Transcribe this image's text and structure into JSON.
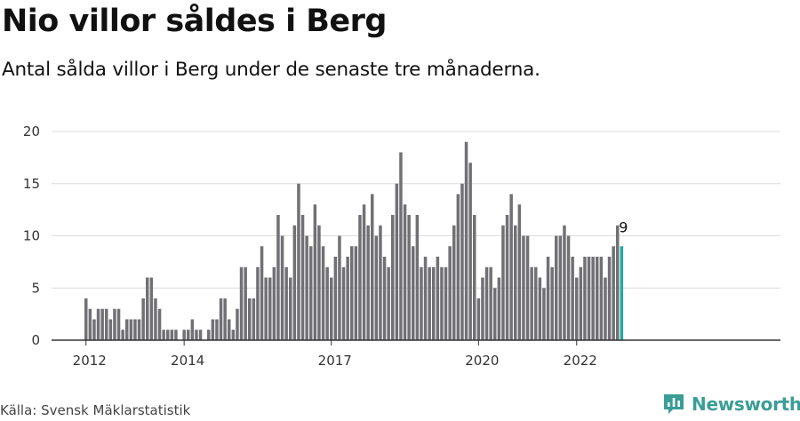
{
  "title": "Nio villor såldes i Berg",
  "subtitle": "Antal sålda villor i Berg under de senaste tre månaderna.",
  "source": "Källa: Svensk Mäklarstatistik",
  "brand": "Newsworthy",
  "colors": {
    "bar": "#717074",
    "highlight": "#23a99f",
    "grid": "#dcdcdc",
    "axis": "#333333",
    "brand": "#3a9e96"
  },
  "chart_data": {
    "type": "bar",
    "title": "Nio villor såldes i Berg",
    "subtitle": "Antal sålda villor i Berg under de senaste tre månaderna.",
    "xlabel": "",
    "ylabel": "",
    "ylim": [
      0,
      20
    ],
    "yticks": [
      0,
      5,
      10,
      15,
      20
    ],
    "grid": true,
    "frequency": "monthly (rolling three-month sum)",
    "xrange": [
      "2012-01",
      "2022-12"
    ],
    "xticks": [
      {
        "label": "2012",
        "month": "2012-01"
      },
      {
        "label": "2014",
        "month": "2014-01"
      },
      {
        "label": "2017",
        "month": "2017-01"
      },
      {
        "label": "2020",
        "month": "2020-01"
      },
      {
        "label": "2022",
        "month": "2022-01"
      }
    ],
    "values": [
      4,
      3,
      2,
      3,
      3,
      3,
      2,
      3,
      3,
      1,
      2,
      2,
      2,
      2,
      4,
      6,
      6,
      4,
      3,
      1,
      1,
      1,
      1,
      0,
      1,
      1,
      2,
      1,
      1,
      0,
      1,
      2,
      2,
      4,
      4,
      2,
      1,
      3,
      7,
      7,
      4,
      4,
      7,
      9,
      6,
      6,
      7,
      12,
      10,
      7,
      6,
      11,
      15,
      12,
      10,
      9,
      13,
      11,
      9,
      7,
      6,
      8,
      10,
      7,
      8,
      9,
      9,
      12,
      13,
      11,
      14,
      10,
      11,
      8,
      7,
      12,
      15,
      18,
      13,
      12,
      9,
      12,
      7,
      8,
      7,
      7,
      8,
      7,
      7,
      9,
      11,
      14,
      15,
      19,
      17,
      12,
      4,
      6,
      7,
      7,
      5,
      6,
      11,
      12,
      14,
      11,
      13,
      10,
      10,
      7,
      7,
      6,
      5,
      8,
      7,
      10,
      10,
      11,
      10,
      8,
      6,
      7,
      8,
      8,
      8,
      8,
      8,
      6,
      8,
      9,
      11,
      9
    ],
    "highlight": {
      "month": "2022-12",
      "value": 9,
      "label": "9"
    }
  }
}
